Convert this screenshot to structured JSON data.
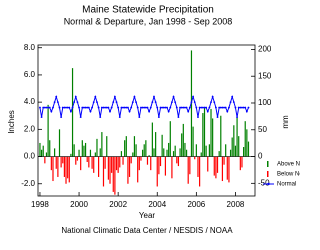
{
  "chart_data": {
    "type": "bar-line",
    "title": "Maine Statewide Precipitation",
    "subtitle": "Normal & Departure, Jan 1998 - Sep 2008",
    "ylabel": "Inches",
    "y2label": "mm",
    "xlabel": "Year",
    "footer": "National Climatic Data Center / NESDIS / NOAA",
    "x": [
      1998.0,
      1998.083,
      1998.167,
      1998.25,
      1998.333,
      1998.417,
      1998.5,
      1998.583,
      1998.667,
      1998.75,
      1998.833,
      1998.917,
      1999.0,
      1999.083,
      1999.167,
      1999.25,
      1999.333,
      1999.417,
      1999.5,
      1999.583,
      1999.667,
      1999.75,
      1999.833,
      1999.917,
      2000.0,
      2000.083,
      2000.167,
      2000.25,
      2000.333,
      2000.417,
      2000.5,
      2000.583,
      2000.667,
      2000.75,
      2000.833,
      2000.917,
      2001.0,
      2001.083,
      2001.167,
      2001.25,
      2001.333,
      2001.417,
      2001.5,
      2001.583,
      2001.667,
      2001.75,
      2001.833,
      2001.917,
      2002.0,
      2002.083,
      2002.167,
      2002.25,
      2002.333,
      2002.417,
      2002.5,
      2002.583,
      2002.667,
      2002.75,
      2002.833,
      2002.917,
      2003.0,
      2003.083,
      2003.167,
      2003.25,
      2003.333,
      2003.417,
      2003.5,
      2003.583,
      2003.667,
      2003.75,
      2003.833,
      2003.917,
      2004.0,
      2004.083,
      2004.167,
      2004.25,
      2004.333,
      2004.417,
      2004.5,
      2004.583,
      2004.667,
      2004.75,
      2004.833,
      2004.917,
      2005.0,
      2005.083,
      2005.167,
      2005.25,
      2005.333,
      2005.417,
      2005.5,
      2005.583,
      2005.667,
      2005.75,
      2005.833,
      2005.917,
      2006.0,
      2006.083,
      2006.167,
      2006.25,
      2006.333,
      2006.417,
      2006.5,
      2006.583,
      2006.667,
      2006.75,
      2006.833,
      2006.917,
      2007.0,
      2007.083,
      2007.167,
      2007.25,
      2007.333,
      2007.417,
      2007.5,
      2007.583,
      2007.667,
      2007.75,
      2007.833,
      2007.917,
      2008.0,
      2008.083,
      2008.167,
      2008.25,
      2008.333,
      2008.417,
      2008.5,
      2008.583,
      2008.667
    ],
    "departure": {
      "above_name": "Above Normal",
      "above_color": "#008000",
      "below_name": "Below Normal",
      "below_color": "#ff0000",
      "values": [
        1.0,
        0.5,
        0.8,
        -0.5,
        0.3,
        3.8,
        1.2,
        -1.0,
        -1.8,
        0.6,
        -0.9,
        -1.5,
        2.0,
        -0.8,
        -0.5,
        -1.5,
        -2.0,
        -1.6,
        -1.9,
        0.2,
        6.5,
        0.9,
        -0.6,
        -0.3,
        0.5,
        -1.0,
        1.2,
        0.8,
        1.0,
        -0.4,
        -0.8,
        0.5,
        -0.9,
        -1.2,
        0.3,
        1.3,
        -1.5,
        0.6,
        1.8,
        -2.2,
        -0.9,
        1.5,
        -1.7,
        -2.0,
        -1.2,
        -2.6,
        -2.8,
        -1.0,
        -1.2,
        -0.8,
        0.4,
        -0.6,
        1.2,
        1.5,
        -2.0,
        -1.5,
        -0.5,
        0.3,
        1.5,
        0.9,
        -1.9,
        -1.0,
        -0.3,
        0.5,
        0.9,
        1.2,
        -0.6,
        0.1,
        -1.0,
        2.5,
        0.6,
        1.8,
        -2.2,
        -1.3,
        -0.7,
        1.6,
        0.6,
        -1.4,
        0.5,
        1.0,
        2.6,
        -1.6,
        0.4,
        0.8,
        -0.5,
        -0.7,
        0.6,
        1.7,
        2.4,
        1.0,
        0.5,
        -2.0,
        -1.3,
        7.8,
        2.2,
        -0.2,
        0.9,
        -1.5,
        -2.2,
        0.3,
        3.2,
        3.6,
        0.8,
        -1.1,
        0.9,
        3.5,
        2.8,
        -1.4,
        -1.6,
        -1.2,
        0.4,
        3.0,
        -1.8,
        -0.6,
        0.9,
        -1.7,
        -1.9,
        0.5,
        1.4,
        2.3,
        0.8,
        2.9,
        1.5,
        -1.0,
        -0.8,
        0.7,
        2.6,
        2.0,
        1.1
      ]
    },
    "series": [
      {
        "name": "Normal",
        "color": "#0000ff",
        "values": [
          3.6,
          2.9,
          3.6,
          3.6,
          3.6,
          3.6,
          3.6,
          3.3,
          3.6,
          4.0,
          4.4,
          4.0,
          3.6,
          2.9,
          3.6,
          3.6,
          3.6,
          3.6,
          3.6,
          3.3,
          3.6,
          4.0,
          4.4,
          4.0,
          3.6,
          2.9,
          3.6,
          3.6,
          3.6,
          3.6,
          3.6,
          3.3,
          3.6,
          4.0,
          4.4,
          4.0,
          3.6,
          2.9,
          3.6,
          3.6,
          3.6,
          3.6,
          3.6,
          3.3,
          3.6,
          4.0,
          4.4,
          4.0,
          3.6,
          2.9,
          3.6,
          3.6,
          3.6,
          3.6,
          3.6,
          3.3,
          3.6,
          4.0,
          4.4,
          4.0,
          3.6,
          2.9,
          3.6,
          3.6,
          3.6,
          3.6,
          3.6,
          3.3,
          3.6,
          4.0,
          4.4,
          4.0,
          3.6,
          2.9,
          3.6,
          3.6,
          3.6,
          3.6,
          3.6,
          3.3,
          3.6,
          4.0,
          4.4,
          4.0,
          3.6,
          2.9,
          3.6,
          3.6,
          3.6,
          3.6,
          3.6,
          3.3,
          3.6,
          4.0,
          4.4,
          4.0,
          3.6,
          2.9,
          3.6,
          3.6,
          3.6,
          3.6,
          3.6,
          3.3,
          3.6,
          4.0,
          4.4,
          4.0,
          3.6,
          2.9,
          3.6,
          3.6,
          3.6,
          3.6,
          3.6,
          3.3,
          3.6,
          4.0,
          4.4,
          4.0,
          3.6,
          2.9,
          3.6,
          3.6,
          3.6,
          3.6,
          3.6,
          3.3,
          3.6
        ]
      }
    ],
    "xlim": [
      1997.9,
      2009.0
    ],
    "xticks": [
      1998,
      2000,
      2002,
      2004,
      2006,
      2008
    ],
    "ylim": [
      -2.9,
      8.2
    ],
    "yticks": [
      {
        "value": -2,
        "label": "-2.0"
      },
      {
        "value": 0,
        "label": "0.0"
      },
      {
        "value": 2,
        "label": "2.0"
      },
      {
        "value": 4,
        "label": "4.0"
      },
      {
        "value": 6,
        "label": "6.0"
      },
      {
        "value": 8,
        "label": "8.0"
      }
    ],
    "y2lim": [
      -73.66,
      208.28
    ],
    "y2ticks": [
      -50,
      0,
      50,
      100,
      150,
      200
    ],
    "legend": "lower-right"
  }
}
